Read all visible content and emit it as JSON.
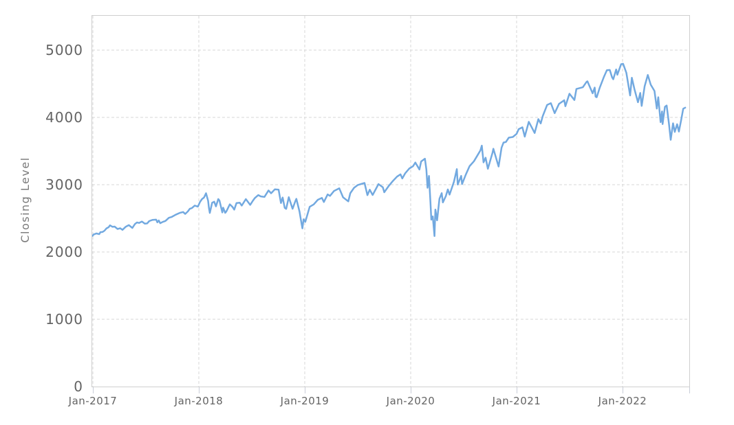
{
  "colors": {
    "background": "#ffffff",
    "line": "#72a9e0",
    "grid": "#d7d7d7",
    "border": "#cfcfcf",
    "axis": "#c9cdd8",
    "tick_mark": "#c9cdd8",
    "tick_label": "#636363",
    "axis_title": "#7a7a7a"
  },
  "chart_data": {
    "type": "line",
    "title": "",
    "xlabel": "",
    "ylabel": "Closing Level",
    "legend": "none",
    "grid": "dashed",
    "ylim": [
      0,
      5510
    ],
    "x_range": [
      "2016-12-30",
      "2022-08-05"
    ],
    "y_ticks": {
      "values": [
        0,
        1000,
        2000,
        3000,
        4000,
        5000
      ],
      "labels": [
        "0",
        "1000",
        "2000",
        "3000",
        "4000",
        "5000"
      ]
    },
    "x_ticks": {
      "years": [
        2017,
        2018,
        2019,
        2020,
        2021,
        2022
      ],
      "labels": [
        "Jan-2017",
        "Jan-2018",
        "Jan-2019",
        "Jan-2020",
        "Jan-2021",
        "Jan-2022"
      ]
    },
    "series": [
      {
        "name": "Closing Level",
        "points": [
          [
            "2016-12-30",
            2239
          ],
          [
            "2017-01-03",
            2258
          ],
          [
            "2017-01-13",
            2275
          ],
          [
            "2017-01-23",
            2265
          ],
          [
            "2017-01-27",
            2295
          ],
          [
            "2017-02-03",
            2297
          ],
          [
            "2017-02-10",
            2316
          ],
          [
            "2017-02-17",
            2351
          ],
          [
            "2017-02-24",
            2367
          ],
          [
            "2017-03-01",
            2396
          ],
          [
            "2017-03-10",
            2373
          ],
          [
            "2017-03-17",
            2378
          ],
          [
            "2017-03-27",
            2342
          ],
          [
            "2017-04-05",
            2353
          ],
          [
            "2017-04-13",
            2329
          ],
          [
            "2017-04-24",
            2374
          ],
          [
            "2017-04-28",
            2384
          ],
          [
            "2017-05-05",
            2399
          ],
          [
            "2017-05-17",
            2357
          ],
          [
            "2017-05-26",
            2416
          ],
          [
            "2017-06-02",
            2439
          ],
          [
            "2017-06-09",
            2432
          ],
          [
            "2017-06-19",
            2453
          ],
          [
            "2017-06-29",
            2420
          ],
          [
            "2017-07-07",
            2425
          ],
          [
            "2017-07-14",
            2459
          ],
          [
            "2017-07-26",
            2478
          ],
          [
            "2017-08-07",
            2481
          ],
          [
            "2017-08-11",
            2441
          ],
          [
            "2017-08-16",
            2468
          ],
          [
            "2017-08-21",
            2428
          ],
          [
            "2017-08-29",
            2446
          ],
          [
            "2017-09-08",
            2461
          ],
          [
            "2017-09-20",
            2508
          ],
          [
            "2017-09-29",
            2519
          ],
          [
            "2017-10-13",
            2553
          ],
          [
            "2017-10-27",
            2581
          ],
          [
            "2017-11-08",
            2594
          ],
          [
            "2017-11-15",
            2565
          ],
          [
            "2017-11-24",
            2602
          ],
          [
            "2017-12-01",
            2642
          ],
          [
            "2017-12-08",
            2652
          ],
          [
            "2017-12-18",
            2690
          ],
          [
            "2017-12-29",
            2674
          ],
          [
            "2018-01-05",
            2743
          ],
          [
            "2018-01-12",
            2786
          ],
          [
            "2018-01-19",
            2810
          ],
          [
            "2018-01-26",
            2873
          ],
          [
            "2018-02-02",
            2762
          ],
          [
            "2018-02-05",
            2649
          ],
          [
            "2018-02-08",
            2581
          ],
          [
            "2018-02-16",
            2732
          ],
          [
            "2018-02-23",
            2747
          ],
          [
            "2018-03-01",
            2678
          ],
          [
            "2018-03-09",
            2787
          ],
          [
            "2018-03-13",
            2765
          ],
          [
            "2018-03-23",
            2588
          ],
          [
            "2018-03-26",
            2658
          ],
          [
            "2018-04-02",
            2582
          ],
          [
            "2018-04-06",
            2604
          ],
          [
            "2018-04-18",
            2708
          ],
          [
            "2018-04-27",
            2670
          ],
          [
            "2018-05-03",
            2630
          ],
          [
            "2018-05-11",
            2728
          ],
          [
            "2018-05-22",
            2733
          ],
          [
            "2018-05-29",
            2690
          ],
          [
            "2018-06-12",
            2786
          ],
          [
            "2018-06-27",
            2700
          ],
          [
            "2018-07-06",
            2760
          ],
          [
            "2018-07-13",
            2801
          ],
          [
            "2018-07-25",
            2846
          ],
          [
            "2018-08-02",
            2827
          ],
          [
            "2018-08-15",
            2818
          ],
          [
            "2018-08-29",
            2914
          ],
          [
            "2018-09-07",
            2872
          ],
          [
            "2018-09-20",
            2931
          ],
          [
            "2018-10-03",
            2926
          ],
          [
            "2018-10-11",
            2728
          ],
          [
            "2018-10-17",
            2809
          ],
          [
            "2018-10-24",
            2656
          ],
          [
            "2018-10-29",
            2641
          ],
          [
            "2018-11-07",
            2814
          ],
          [
            "2018-11-20",
            2642
          ],
          [
            "2018-11-30",
            2760
          ],
          [
            "2018-12-03",
            2790
          ],
          [
            "2018-12-14",
            2600
          ],
          [
            "2018-12-21",
            2417
          ],
          [
            "2018-12-24",
            2351
          ],
          [
            "2018-12-28",
            2486
          ],
          [
            "2019-01-03",
            2448
          ],
          [
            "2019-01-18",
            2671
          ],
          [
            "2019-02-01",
            2707
          ],
          [
            "2019-02-15",
            2776
          ],
          [
            "2019-03-01",
            2804
          ],
          [
            "2019-03-08",
            2743
          ],
          [
            "2019-03-21",
            2855
          ],
          [
            "2019-03-29",
            2834
          ],
          [
            "2019-04-12",
            2907
          ],
          [
            "2019-04-30",
            2946
          ],
          [
            "2019-05-13",
            2812
          ],
          [
            "2019-05-31",
            2752
          ],
          [
            "2019-06-07",
            2873
          ],
          [
            "2019-06-20",
            2954
          ],
          [
            "2019-07-03",
            2996
          ],
          [
            "2019-07-26",
            3026
          ],
          [
            "2019-08-05",
            2845
          ],
          [
            "2019-08-13",
            2926
          ],
          [
            "2019-08-23",
            2847
          ],
          [
            "2019-09-12",
            3009
          ],
          [
            "2019-09-27",
            2962
          ],
          [
            "2019-10-02",
            2888
          ],
          [
            "2019-10-18",
            2986
          ],
          [
            "2019-10-30",
            3047
          ],
          [
            "2019-11-15",
            3120
          ],
          [
            "2019-11-27",
            3154
          ],
          [
            "2019-12-03",
            3093
          ],
          [
            "2019-12-13",
            3169
          ],
          [
            "2019-12-27",
            3240
          ],
          [
            "2020-01-09",
            3275
          ],
          [
            "2020-01-17",
            3330
          ],
          [
            "2020-01-31",
            3226
          ],
          [
            "2020-02-06",
            3346
          ],
          [
            "2020-02-19",
            3386
          ],
          [
            "2020-02-24",
            3226
          ],
          [
            "2020-02-28",
            2954
          ],
          [
            "2020-03-04",
            3130
          ],
          [
            "2020-03-09",
            2746
          ],
          [
            "2020-03-12",
            2481
          ],
          [
            "2020-03-17",
            2529
          ],
          [
            "2020-03-23",
            2237
          ],
          [
            "2020-03-26",
            2630
          ],
          [
            "2020-04-01",
            2470
          ],
          [
            "2020-04-09",
            2790
          ],
          [
            "2020-04-17",
            2875
          ],
          [
            "2020-04-21",
            2737
          ],
          [
            "2020-05-01",
            2831
          ],
          [
            "2020-05-08",
            2930
          ],
          [
            "2020-05-14",
            2852
          ],
          [
            "2020-05-29",
            3044
          ],
          [
            "2020-06-08",
            3232
          ],
          [
            "2020-06-11",
            3002
          ],
          [
            "2020-06-23",
            3131
          ],
          [
            "2020-06-26",
            3009
          ],
          [
            "2020-07-09",
            3152
          ],
          [
            "2020-07-22",
            3276
          ],
          [
            "2020-08-06",
            3349
          ],
          [
            "2020-08-28",
            3508
          ],
          [
            "2020-09-02",
            3581
          ],
          [
            "2020-09-08",
            3332
          ],
          [
            "2020-09-15",
            3401
          ],
          [
            "2020-09-23",
            3237
          ],
          [
            "2020-10-09",
            3477
          ],
          [
            "2020-10-12",
            3534
          ],
          [
            "2020-10-30",
            3270
          ],
          [
            "2020-11-09",
            3550
          ],
          [
            "2020-11-16",
            3627
          ],
          [
            "2020-11-24",
            3635
          ],
          [
            "2020-12-04",
            3699
          ],
          [
            "2020-12-18",
            3709
          ],
          [
            "2020-12-31",
            3756
          ],
          [
            "2021-01-08",
            3825
          ],
          [
            "2021-01-21",
            3853
          ],
          [
            "2021-01-29",
            3714
          ],
          [
            "2021-02-12",
            3935
          ],
          [
            "2021-02-25",
            3829
          ],
          [
            "2021-03-04",
            3768
          ],
          [
            "2021-03-17",
            3974
          ],
          [
            "2021-03-25",
            3910
          ],
          [
            "2021-04-01",
            4020
          ],
          [
            "2021-04-16",
            4185
          ],
          [
            "2021-04-29",
            4211
          ],
          [
            "2021-05-12",
            4063
          ],
          [
            "2021-05-27",
            4201
          ],
          [
            "2021-06-14",
            4255
          ],
          [
            "2021-06-18",
            4166
          ],
          [
            "2021-07-02",
            4352
          ],
          [
            "2021-07-19",
            4258
          ],
          [
            "2021-07-26",
            4422
          ],
          [
            "2021-08-17",
            4448
          ],
          [
            "2021-08-30",
            4529
          ],
          [
            "2021-09-02",
            4537
          ],
          [
            "2021-09-20",
            4358
          ],
          [
            "2021-09-27",
            4443
          ],
          [
            "2021-09-30",
            4308
          ],
          [
            "2021-10-04",
            4300
          ],
          [
            "2021-10-14",
            4438
          ],
          [
            "2021-10-29",
            4605
          ],
          [
            "2021-11-08",
            4702
          ],
          [
            "2021-11-18",
            4705
          ],
          [
            "2021-11-26",
            4595
          ],
          [
            "2021-11-30",
            4567
          ],
          [
            "2021-12-10",
            4712
          ],
          [
            "2021-12-14",
            4634
          ],
          [
            "2021-12-27",
            4791
          ],
          [
            "2022-01-03",
            4797
          ],
          [
            "2022-01-14",
            4663
          ],
          [
            "2022-01-27",
            4327
          ],
          [
            "2022-02-02",
            4589
          ],
          [
            "2022-02-11",
            4419
          ],
          [
            "2022-02-23",
            4226
          ],
          [
            "2022-03-03",
            4363
          ],
          [
            "2022-03-08",
            4171
          ],
          [
            "2022-03-18",
            4463
          ],
          [
            "2022-03-29",
            4631
          ],
          [
            "2022-04-08",
            4488
          ],
          [
            "2022-04-21",
            4393
          ],
          [
            "2022-04-29",
            4132
          ],
          [
            "2022-05-04",
            4300
          ],
          [
            "2022-05-12",
            3930
          ],
          [
            "2022-05-17",
            4089
          ],
          [
            "2022-05-19",
            3901
          ],
          [
            "2022-05-27",
            4158
          ],
          [
            "2022-06-02",
            4177
          ],
          [
            "2022-06-10",
            3901
          ],
          [
            "2022-06-16",
            3667
          ],
          [
            "2022-06-24",
            3912
          ],
          [
            "2022-06-30",
            3785
          ],
          [
            "2022-07-08",
            3899
          ],
          [
            "2022-07-14",
            3790
          ],
          [
            "2022-07-22",
            3962
          ],
          [
            "2022-07-29",
            4130
          ],
          [
            "2022-08-05",
            4145
          ]
        ]
      }
    ]
  }
}
